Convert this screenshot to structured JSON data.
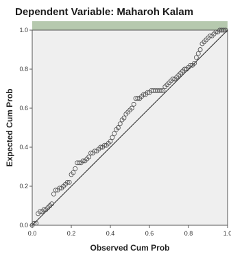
{
  "chart_data": {
    "type": "scatter",
    "title": "Dependent Variable: Maharoh Kalam",
    "xlabel": "Observed Cum Prob",
    "ylabel": "Expected Cum Prob",
    "xlim": [
      0.0,
      1.0
    ],
    "ylim": [
      0.0,
      1.0
    ],
    "xticks": [
      "0.0",
      "0.2",
      "0.4",
      "0.6",
      "0.8",
      "1.0"
    ],
    "yticks": [
      "0.0",
      "0.2",
      "0.4",
      "0.6",
      "0.8",
      "1.0"
    ],
    "grid": false,
    "reference_line": [
      [
        0,
        0
      ],
      [
        1,
        1
      ]
    ],
    "colors": {
      "plot_background": "#efefef",
      "marker": "#555555",
      "line": "#222222",
      "header_band": "#7a9d6b"
    },
    "x": [
      0.0,
      0.01,
      0.02,
      0.03,
      0.04,
      0.05,
      0.06,
      0.07,
      0.08,
      0.09,
      0.1,
      0.11,
      0.12,
      0.13,
      0.14,
      0.15,
      0.16,
      0.17,
      0.18,
      0.19,
      0.2,
      0.21,
      0.22,
      0.23,
      0.24,
      0.25,
      0.26,
      0.27,
      0.28,
      0.29,
      0.3,
      0.31,
      0.32,
      0.33,
      0.34,
      0.35,
      0.36,
      0.37,
      0.38,
      0.39,
      0.4,
      0.41,
      0.42,
      0.43,
      0.44,
      0.45,
      0.46,
      0.47,
      0.48,
      0.49,
      0.5,
      0.51,
      0.52,
      0.53,
      0.54,
      0.55,
      0.56,
      0.57,
      0.58,
      0.59,
      0.6,
      0.61,
      0.62,
      0.63,
      0.64,
      0.65,
      0.66,
      0.67,
      0.68,
      0.69,
      0.7,
      0.71,
      0.72,
      0.73,
      0.74,
      0.75,
      0.76,
      0.77,
      0.78,
      0.79,
      0.8,
      0.81,
      0.82,
      0.83,
      0.84,
      0.85,
      0.86,
      0.87,
      0.88,
      0.89,
      0.9,
      0.91,
      0.92,
      0.93,
      0.94,
      0.95,
      0.96,
      0.97,
      0.98,
      0.99
    ],
    "y": [
      0.0,
      0.01,
      0.01,
      0.06,
      0.07,
      0.07,
      0.08,
      0.08,
      0.09,
      0.1,
      0.11,
      0.16,
      0.18,
      0.18,
      0.19,
      0.19,
      0.2,
      0.21,
      0.22,
      0.22,
      0.26,
      0.27,
      0.29,
      0.32,
      0.32,
      0.32,
      0.33,
      0.33,
      0.34,
      0.35,
      0.37,
      0.37,
      0.38,
      0.38,
      0.39,
      0.4,
      0.4,
      0.41,
      0.41,
      0.42,
      0.43,
      0.45,
      0.47,
      0.49,
      0.5,
      0.52,
      0.54,
      0.55,
      0.57,
      0.58,
      0.59,
      0.6,
      0.62,
      0.65,
      0.65,
      0.65,
      0.66,
      0.67,
      0.67,
      0.68,
      0.68,
      0.69,
      0.69,
      0.69,
      0.69,
      0.69,
      0.69,
      0.69,
      0.71,
      0.72,
      0.73,
      0.74,
      0.75,
      0.75,
      0.76,
      0.77,
      0.78,
      0.79,
      0.8,
      0.8,
      0.81,
      0.82,
      0.82,
      0.83,
      0.86,
      0.88,
      0.9,
      0.93,
      0.94,
      0.95,
      0.96,
      0.97,
      0.97,
      0.98,
      0.99,
      0.99,
      1.0,
      1.0,
      1.0,
      1.0
    ]
  }
}
